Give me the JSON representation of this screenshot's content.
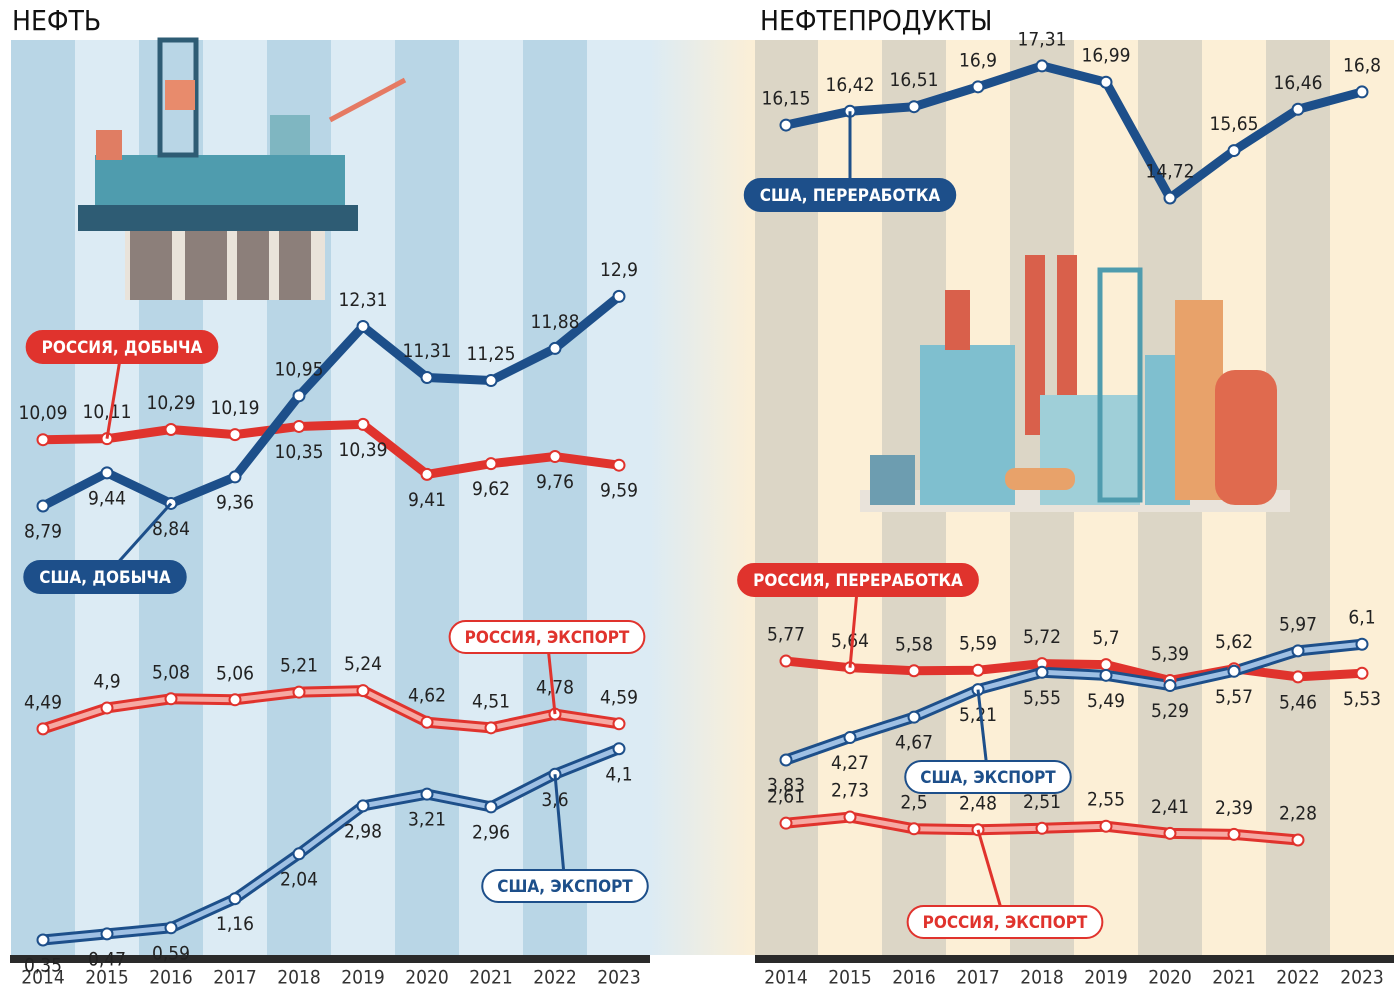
{
  "chart_data": [
    {
      "type": "line",
      "title": "НЕФТЬ",
      "categories": [
        "2014",
        "2015",
        "2016",
        "2017",
        "2018",
        "2019",
        "2020",
        "2021",
        "2022",
        "2023"
      ],
      "series": [
        {
          "name": "РОССИЯ, ДОБЫЧА",
          "color": "#e0332d",
          "style": "solid",
          "values": [
            10.09,
            10.11,
            10.29,
            10.19,
            10.35,
            10.39,
            9.41,
            9.62,
            9.76,
            9.59
          ],
          "value_labels": [
            "10,09",
            "10,11",
            "10,29",
            "10,19",
            "10,35",
            "10,39",
            "9,41",
            "9,62",
            "9,76",
            "9,59"
          ]
        },
        {
          "name": "США, ДОБЫЧА",
          "color": "#1d4f8a",
          "style": "solid",
          "values": [
            8.79,
            9.44,
            8.84,
            9.36,
            10.95,
            12.31,
            11.31,
            11.25,
            11.88,
            12.9
          ],
          "value_labels": [
            "8,79",
            "9,44",
            "8,84",
            "9,36",
            "10,95",
            "12,31",
            "11,31",
            "11,25",
            "11,88",
            "12,9"
          ]
        },
        {
          "name": "РОССИЯ, ЭКСПОРТ",
          "color": "#e0332d",
          "style": "double",
          "values": [
            4.49,
            4.9,
            5.08,
            5.06,
            5.21,
            5.24,
            4.62,
            4.51,
            4.78,
            4.59
          ],
          "value_labels": [
            "4,49",
            "4,9",
            "5,08",
            "5,06",
            "5,21",
            "5,24",
            "4,62",
            "4,51",
            "4,78",
            "4,59"
          ]
        },
        {
          "name": "США, ЭКСПОРТ",
          "color": "#1d4f8a",
          "style": "double",
          "values": [
            0.35,
            0.47,
            0.59,
            1.16,
            2.04,
            2.98,
            3.21,
            2.96,
            3.6,
            4.1
          ],
          "value_labels": [
            "0,35",
            "0,47",
            "0,59",
            "1,16",
            "2,04",
            "2,98",
            "3,21",
            "2,96",
            "3,6",
            "4,1"
          ]
        }
      ]
    },
    {
      "type": "line",
      "title": "НЕФТЕПРОДУКТЫ",
      "categories": [
        "2014",
        "2015",
        "2016",
        "2017",
        "2018",
        "2019",
        "2020",
        "2021",
        "2022",
        "2023"
      ],
      "series": [
        {
          "name": "США, ПЕРЕРАБОТКА",
          "color": "#1d4f8a",
          "style": "solid",
          "values": [
            16.15,
            16.42,
            16.51,
            16.9,
            17.31,
            16.99,
            14.72,
            15.65,
            16.46,
            16.8
          ],
          "value_labels": [
            "16,15",
            "16,42",
            "16,51",
            "16,9",
            "17,31",
            "16,99",
            "14,72",
            "15,65",
            "16,46",
            "16,8"
          ]
        },
        {
          "name": "РОССИЯ, ПЕРЕРАБОТКА",
          "color": "#e0332d",
          "style": "solid",
          "values": [
            5.77,
            5.64,
            5.58,
            5.59,
            5.72,
            5.7,
            5.39,
            5.62,
            5.46,
            5.53
          ],
          "value_labels": [
            "5,77",
            "5,64",
            "5,58",
            "5,59",
            "5,72",
            "5,7",
            "5,39",
            "5,62",
            "5,46",
            "5,53"
          ]
        },
        {
          "name": "США, ЭКСПОРТ",
          "color": "#1d4f8a",
          "style": "double",
          "values": [
            3.83,
            4.27,
            4.67,
            5.21,
            5.55,
            5.49,
            5.29,
            5.57,
            5.97,
            6.1
          ],
          "value_labels": [
            "3,83",
            "4,27",
            "4,67",
            "5,21",
            "5,55",
            "5,49",
            "5,29",
            "5,57",
            "5,97",
            "6,1"
          ]
        },
        {
          "name": "РОССИЯ, ЭКСПОРТ",
          "color": "#e0332d",
          "style": "double",
          "values": [
            2.61,
            2.73,
            2.5,
            2.48,
            2.51,
            2.55,
            2.41,
            2.39,
            2.28,
            null
          ],
          "value_labels": [
            "2,61",
            "2,73",
            "2,5",
            "2,48",
            "2,51",
            "2,55",
            "2,41",
            "2,39",
            "2,28",
            null
          ]
        }
      ]
    }
  ]
}
